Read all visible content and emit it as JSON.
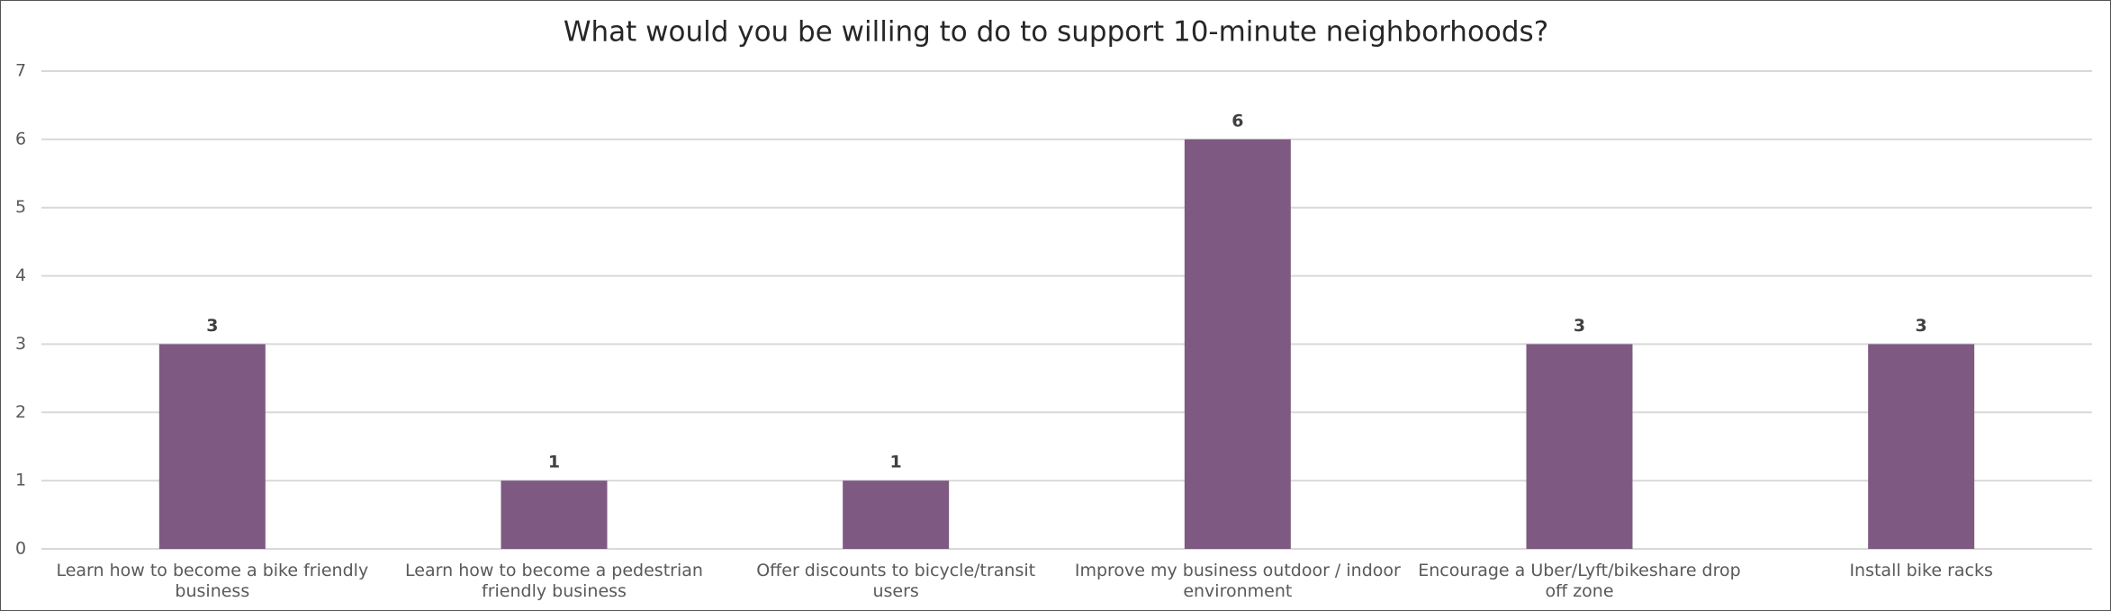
{
  "chart_data": {
    "type": "bar",
    "title": "What would you be willing to do to support 10-minute neighborhoods?",
    "categories": [
      "Learn how to become a bike friendly business",
      "Learn how to become a pedestrian friendly business",
      "Offer discounts to bicycle/transit users",
      "Improve my business outdoor / indoor environment",
      "Encourage a Uber/Lyft/bikeshare drop off zone",
      "Install bike racks"
    ],
    "values": [
      3,
      1,
      1,
      6,
      3,
      3
    ],
    "color": "#7e5a82",
    "ylim": [
      0,
      7
    ],
    "yticks": [
      0,
      1,
      2,
      3,
      4,
      5,
      6,
      7
    ],
    "grid": true
  }
}
